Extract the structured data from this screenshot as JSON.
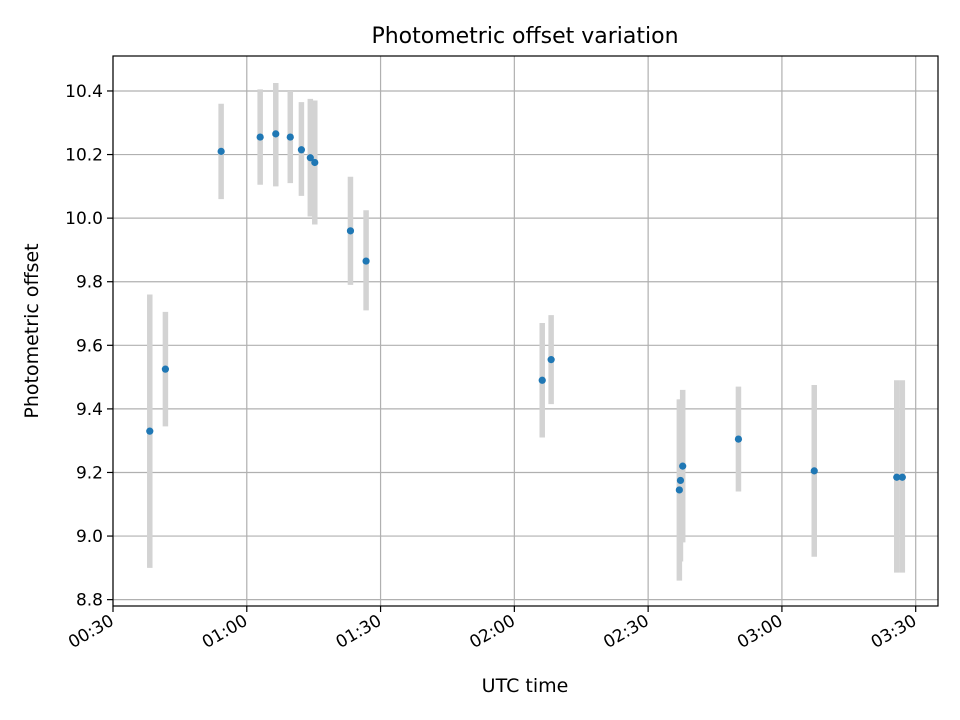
{
  "chart_data": {
    "type": "scatter",
    "title": "Photometric offset variation",
    "xlabel": "UTC time",
    "ylabel": "Photometric offset",
    "x_format": "HH:MM",
    "xlim": [
      "00:30",
      "03:35"
    ],
    "ylim": [
      8.78,
      10.51
    ],
    "x_ticks": [
      "00:30",
      "01:00",
      "01:30",
      "02:00",
      "02:30",
      "03:00",
      "03:30"
    ],
    "y_ticks": [
      8.8,
      9.0,
      9.2,
      9.4,
      9.6,
      9.8,
      10.0,
      10.2,
      10.4
    ],
    "y_tick_labels": [
      "8.8",
      "9.0",
      "9.2",
      "9.4",
      "9.6",
      "9.8",
      "10.0",
      "10.2",
      "10.4"
    ],
    "grid": true,
    "legend": "none",
    "colors": {
      "marker": "#1f77b4",
      "errorbar": "#d3d3d3",
      "grid": "#b0b0b0"
    },
    "points": [
      {
        "x": "00:38:15",
        "y": 9.33,
        "ylow": 8.9,
        "yhigh": 9.76
      },
      {
        "x": "00:41:45",
        "y": 9.525,
        "ylow": 9.345,
        "yhigh": 9.705
      },
      {
        "x": "00:54:15",
        "y": 10.21,
        "ylow": 10.06,
        "yhigh": 10.36
      },
      {
        "x": "01:03:00",
        "y": 10.255,
        "ylow": 10.105,
        "yhigh": 10.405
      },
      {
        "x": "01:06:30",
        "y": 10.265,
        "ylow": 10.1,
        "yhigh": 10.425
      },
      {
        "x": "01:09:45",
        "y": 10.255,
        "ylow": 10.11,
        "yhigh": 10.4
      },
      {
        "x": "01:12:15",
        "y": 10.215,
        "ylow": 10.07,
        "yhigh": 10.365
      },
      {
        "x": "01:14:15",
        "y": 10.19,
        "ylow": 10.005,
        "yhigh": 10.375
      },
      {
        "x": "01:15:15",
        "y": 10.175,
        "ylow": 9.98,
        "yhigh": 10.37
      },
      {
        "x": "01:23:15",
        "y": 9.96,
        "ylow": 9.79,
        "yhigh": 10.13
      },
      {
        "x": "01:26:45",
        "y": 9.865,
        "ylow": 9.71,
        "yhigh": 10.025
      },
      {
        "x": "02:06:15",
        "y": 9.49,
        "ylow": 9.31,
        "yhigh": 9.67
      },
      {
        "x": "02:08:15",
        "y": 9.555,
        "ylow": 9.415,
        "yhigh": 9.695
      },
      {
        "x": "02:37:00",
        "y": 9.145,
        "ylow": 8.86,
        "yhigh": 9.43
      },
      {
        "x": "02:37:15",
        "y": 9.175,
        "ylow": 8.92,
        "yhigh": 9.43
      },
      {
        "x": "02:37:45",
        "y": 9.22,
        "ylow": 8.98,
        "yhigh": 9.46
      },
      {
        "x": "02:50:15",
        "y": 9.305,
        "ylow": 9.14,
        "yhigh": 9.47
      },
      {
        "x": "03:07:15",
        "y": 9.205,
        "ylow": 8.935,
        "yhigh": 9.475
      },
      {
        "x": "03:25:45",
        "y": 9.185,
        "ylow": 8.885,
        "yhigh": 9.49
      },
      {
        "x": "03:27:00",
        "y": 9.185,
        "ylow": 8.885,
        "yhigh": 9.49
      }
    ]
  }
}
